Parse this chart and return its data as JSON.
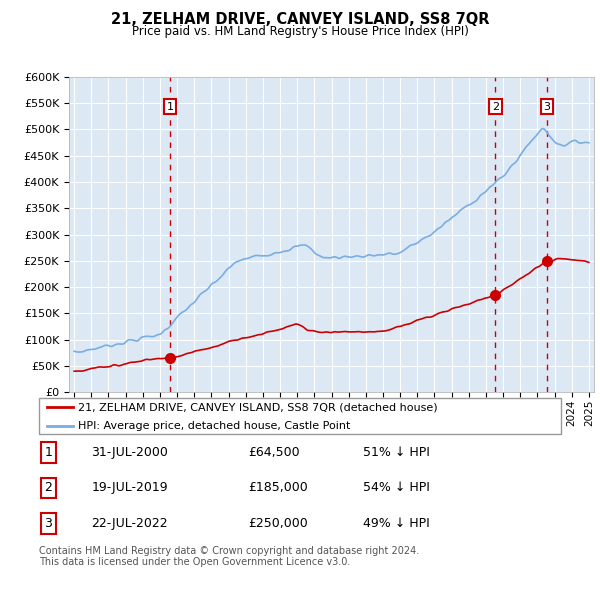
{
  "title": "21, ZELHAM DRIVE, CANVEY ISLAND, SS8 7QR",
  "subtitle": "Price paid vs. HM Land Registry's House Price Index (HPI)",
  "ytick_values": [
    0,
    50000,
    100000,
    150000,
    200000,
    250000,
    300000,
    350000,
    400000,
    450000,
    500000,
    550000,
    600000
  ],
  "xlim_start": 1994.7,
  "xlim_end": 2025.3,
  "ylim_min": 0,
  "ylim_max": 600000,
  "background_color": "#dce9f5",
  "grid_color": "#ffffff",
  "red_line_color": "#cc0000",
  "blue_line_color": "#7aade0",
  "sale_marker_color": "#cc0000",
  "dashed_line_color": "#cc0000",
  "transaction_labels": [
    "1",
    "2",
    "3"
  ],
  "transaction_dates": [
    2000.58,
    2019.55,
    2022.55
  ],
  "transaction_prices": [
    64500,
    185000,
    250000
  ],
  "transaction_display_dates": [
    "31-JUL-2000",
    "19-JUL-2019",
    "22-JUL-2022"
  ],
  "transaction_display_prices": [
    "£64,500",
    "£185,000",
    "£250,000"
  ],
  "transaction_hpi_pct": [
    "51% ↓ HPI",
    "54% ↓ HPI",
    "49% ↓ HPI"
  ],
  "legend_red_label": "21, ZELHAM DRIVE, CANVEY ISLAND, SS8 7QR (detached house)",
  "legend_blue_label": "HPI: Average price, detached house, Castle Point",
  "footer_line1": "Contains HM Land Registry data © Crown copyright and database right 2024.",
  "footer_line2": "This data is licensed under the Open Government Licence v3.0."
}
